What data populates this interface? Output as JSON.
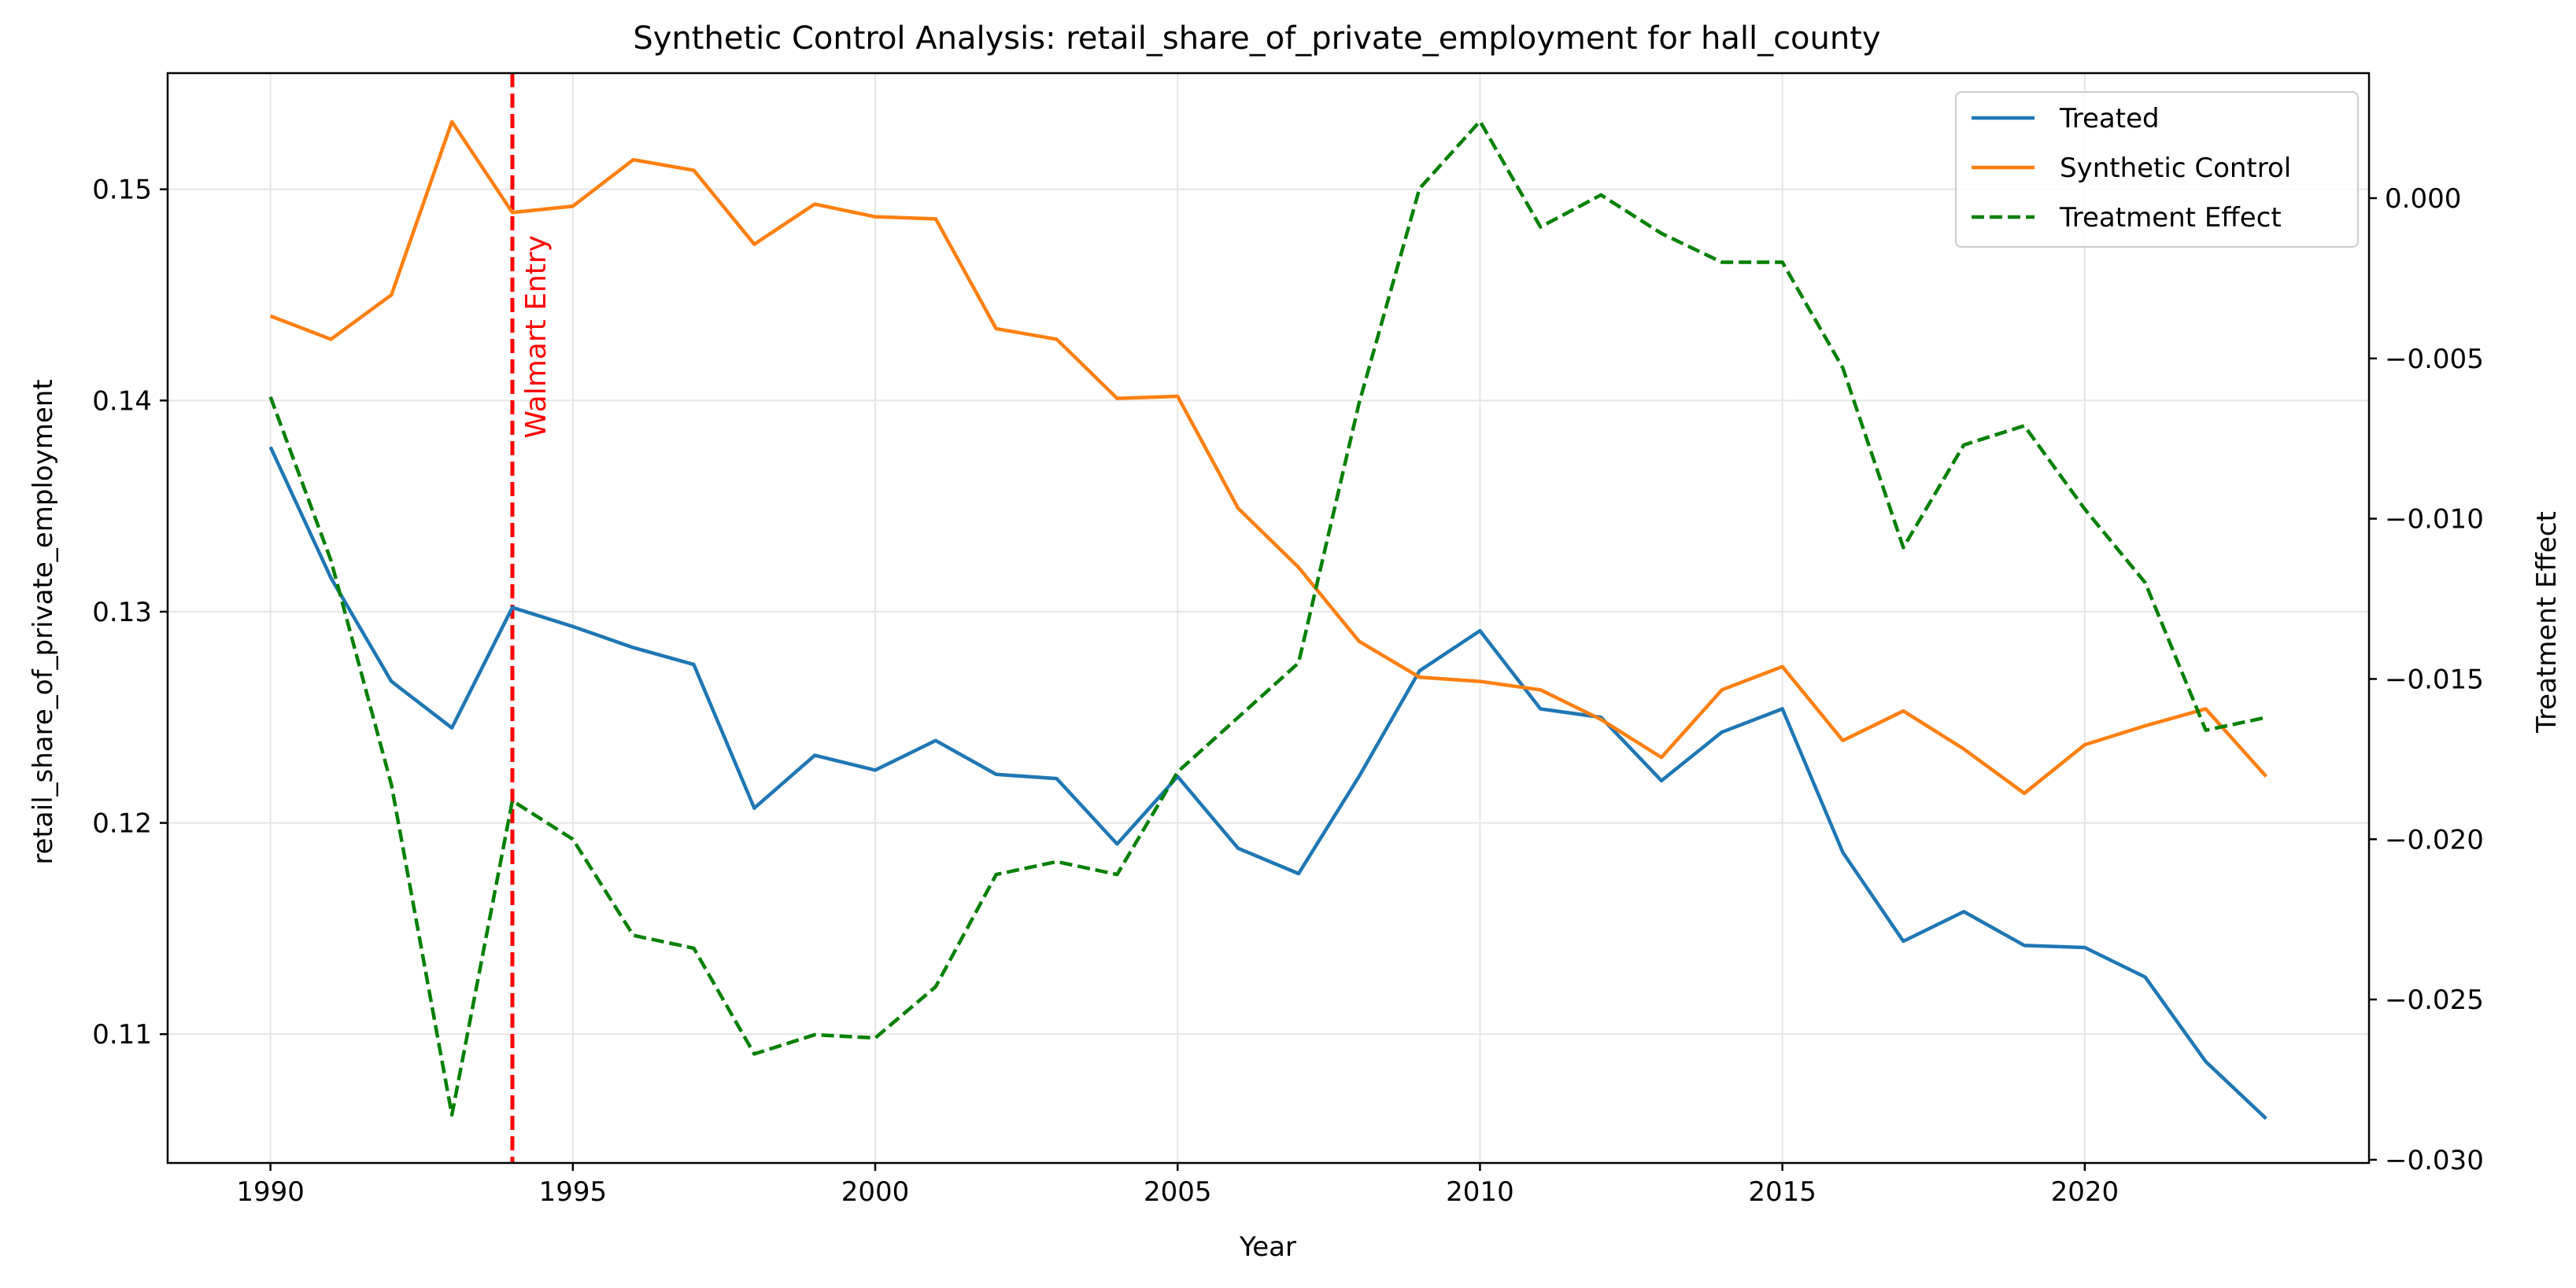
{
  "chart_data": {
    "type": "line",
    "title": "Synthetic Control Analysis: retail_share_of_private_employment for hall_county",
    "xlabel": "Year",
    "ylabel": "retail_share_of_private_employment",
    "y2label": "Treatment Effect",
    "xlim": [
      1988.3,
      2024.7
    ],
    "ylim": [
      0.1039,
      0.1555
    ],
    "y2lim": [
      -0.0301,
      0.0039
    ],
    "x_ticks": [
      1990,
      1995,
      2000,
      2005,
      2010,
      2015,
      2020
    ],
    "x_tick_labels": [
      "1990",
      "1995",
      "2000",
      "2005",
      "2010",
      "2015",
      "2020"
    ],
    "y_ticks": [
      0.11,
      0.12,
      0.13,
      0.14,
      0.15
    ],
    "y_tick_labels": [
      "0.11",
      "0.12",
      "0.13",
      "0.14",
      "0.15"
    ],
    "y2_ticks": [
      -0.03,
      -0.025,
      -0.02,
      -0.015,
      -0.01,
      -0.005,
      0.0
    ],
    "y2_tick_labels": [
      "−0.030",
      "−0.025",
      "−0.020",
      "−0.015",
      "−0.010",
      "−0.005",
      "0.000"
    ],
    "grid": true,
    "legend_position": "top-right",
    "colors": {
      "treated": "#1f77b4",
      "synthetic": "#ff7f0e",
      "effect": "#008000",
      "event": "#ff0000",
      "y2label": "#008000"
    },
    "event_line": {
      "x": 1994,
      "label": "Walmart Entry"
    },
    "x": [
      1990,
      1991,
      1992,
      1993,
      1994,
      1995,
      1996,
      1997,
      1998,
      1999,
      2000,
      2001,
      2002,
      2003,
      2004,
      2005,
      2006,
      2007,
      2008,
      2009,
      2010,
      2011,
      2012,
      2013,
      2014,
      2015,
      2016,
      2017,
      2018,
      2019,
      2020,
      2021,
      2022,
      2023
    ],
    "series": [
      {
        "name": "Treated",
        "axis": "left",
        "style": "solid",
        "values": [
          0.1378,
          0.1316,
          0.1267,
          0.1245,
          0.1302,
          0.1293,
          0.1283,
          0.1275,
          0.1207,
          0.1232,
          0.1225,
          0.1239,
          0.1223,
          0.1221,
          0.119,
          0.1222,
          0.1188,
          0.1176,
          0.1222,
          0.1272,
          0.1291,
          0.1254,
          0.125,
          0.122,
          0.1243,
          0.1254,
          0.1186,
          0.1144,
          0.1158,
          0.1142,
          0.1141,
          0.1127,
          0.1087,
          0.106
        ]
      },
      {
        "name": "Synthetic Control",
        "axis": "left",
        "style": "solid",
        "values": [
          0.144,
          0.1429,
          0.145,
          0.1532,
          0.1489,
          0.1492,
          0.1514,
          0.1509,
          0.1474,
          0.1493,
          0.1487,
          0.1486,
          0.1434,
          0.1429,
          0.1401,
          0.1402,
          0.1349,
          0.1321,
          0.1286,
          0.1269,
          0.1267,
          0.1263,
          0.1249,
          0.1231,
          0.1263,
          0.1274,
          0.1239,
          0.1253,
          0.1235,
          0.1214,
          0.1237,
          0.1246,
          0.1254,
          0.1222
        ]
      },
      {
        "name": "Treatment Effect",
        "axis": "right",
        "style": "dashed",
        "values": [
          -0.0062,
          -0.0113,
          -0.0183,
          -0.0286,
          -0.0188,
          -0.02,
          -0.023,
          -0.0234,
          -0.0267,
          -0.0261,
          -0.0262,
          -0.0246,
          -0.0211,
          -0.0207,
          -0.0211,
          -0.0179,
          -0.0162,
          -0.0145,
          -0.0064,
          0.0003,
          0.0024,
          -0.0009,
          0.0001,
          -0.0011,
          -0.002,
          -0.002,
          -0.0053,
          -0.0109,
          -0.0077,
          -0.0071,
          -0.0097,
          -0.012,
          -0.0166,
          -0.0162
        ]
      }
    ]
  }
}
